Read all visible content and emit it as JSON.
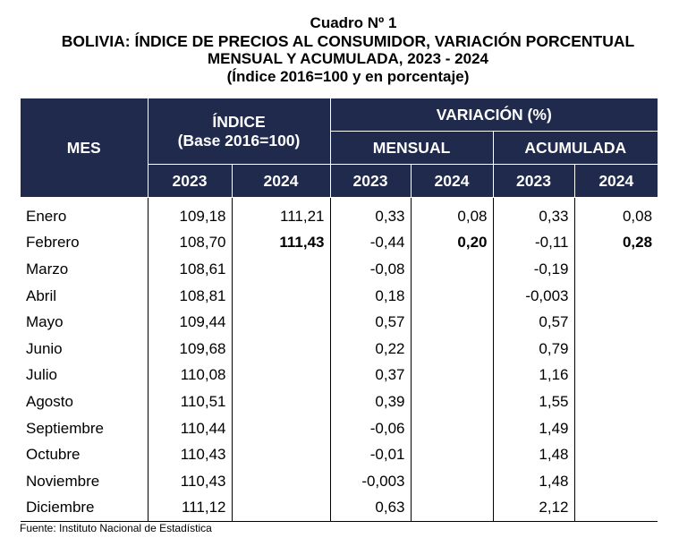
{
  "title": {
    "line1": "Cuadro Nº 1",
    "line2": "BOLIVIA: ÍNDICE DE PRECIOS AL CONSUMIDOR, VARIACIÓN PORCENTUAL",
    "line3": "MENSUAL Y ACUMULADA, 2023 - 2024",
    "line4": "(Índice 2016=100 y en porcentaje)"
  },
  "headers": {
    "mes": "MES",
    "indice": "ÍNDICE",
    "indice_base": "(Base 2016=100)",
    "variacion": "VARIACIÓN (%)",
    "mensual": "MENSUAL",
    "acumulada": "ACUMULADA",
    "years": [
      "2023",
      "2024",
      "2023",
      "2024",
      "2023",
      "2024"
    ]
  },
  "rows": [
    {
      "mes": "Enero",
      "indice_2023": "109,18",
      "indice_2024": "111,21",
      "mensual_2023": "0,33",
      "mensual_2024": "0,08",
      "acumulada_2023": "0,33",
      "acumulada_2024": "0,08"
    },
    {
      "mes": "Febrero",
      "indice_2023": "108,70",
      "indice_2024": "111,43",
      "mensual_2023": "-0,44",
      "mensual_2024": "0,20",
      "acumulada_2023": "-0,11",
      "acumulada_2024": "0,28"
    },
    {
      "mes": "Marzo",
      "indice_2023": "108,61",
      "indice_2024": "",
      "mensual_2023": "-0,08",
      "mensual_2024": "",
      "acumulada_2023": "-0,19",
      "acumulada_2024": ""
    },
    {
      "mes": "Abril",
      "indice_2023": "108,81",
      "indice_2024": "",
      "mensual_2023": "0,18",
      "mensual_2024": "",
      "acumulada_2023": "-0,003",
      "acumulada_2024": ""
    },
    {
      "mes": "Mayo",
      "indice_2023": "109,44",
      "indice_2024": "",
      "mensual_2023": "0,57",
      "mensual_2024": "",
      "acumulada_2023": "0,57",
      "acumulada_2024": ""
    },
    {
      "mes": "Junio",
      "indice_2023": "109,68",
      "indice_2024": "",
      "mensual_2023": "0,22",
      "mensual_2024": "",
      "acumulada_2023": "0,79",
      "acumulada_2024": ""
    },
    {
      "mes": "Julio",
      "indice_2023": "110,08",
      "indice_2024": "",
      "mensual_2023": "0,37",
      "mensual_2024": "",
      "acumulada_2023": "1,16",
      "acumulada_2024": ""
    },
    {
      "mes": "Agosto",
      "indice_2023": "110,51",
      "indice_2024": "",
      "mensual_2023": "0,39",
      "mensual_2024": "",
      "acumulada_2023": "1,55",
      "acumulada_2024": ""
    },
    {
      "mes": "Septiembre",
      "indice_2023": "110,44",
      "indice_2024": "",
      "mensual_2023": "-0,06",
      "mensual_2024": "",
      "acumulada_2023": "1,49",
      "acumulada_2024": ""
    },
    {
      "mes": "Octubre",
      "indice_2023": "110,43",
      "indice_2024": "",
      "mensual_2023": "-0,01",
      "mensual_2024": "",
      "acumulada_2023": "1,48",
      "acumulada_2024": ""
    },
    {
      "mes": "Noviembre",
      "indice_2023": "110,43",
      "indice_2024": "",
      "mensual_2023": "-0,003",
      "mensual_2024": "",
      "acumulada_2023": "1,48",
      "acumulada_2024": ""
    },
    {
      "mes": "Diciembre",
      "indice_2023": "111,12",
      "indice_2024": "",
      "mensual_2023": "0,63",
      "mensual_2024": "",
      "acumulada_2023": "2,12",
      "acumulada_2024": ""
    }
  ],
  "bold_row": "Febrero",
  "source": "Fuente: Instituto Nacional de Estadística",
  "colors": {
    "header_bg": "#1f2a4d",
    "header_text": "#ffffff"
  }
}
